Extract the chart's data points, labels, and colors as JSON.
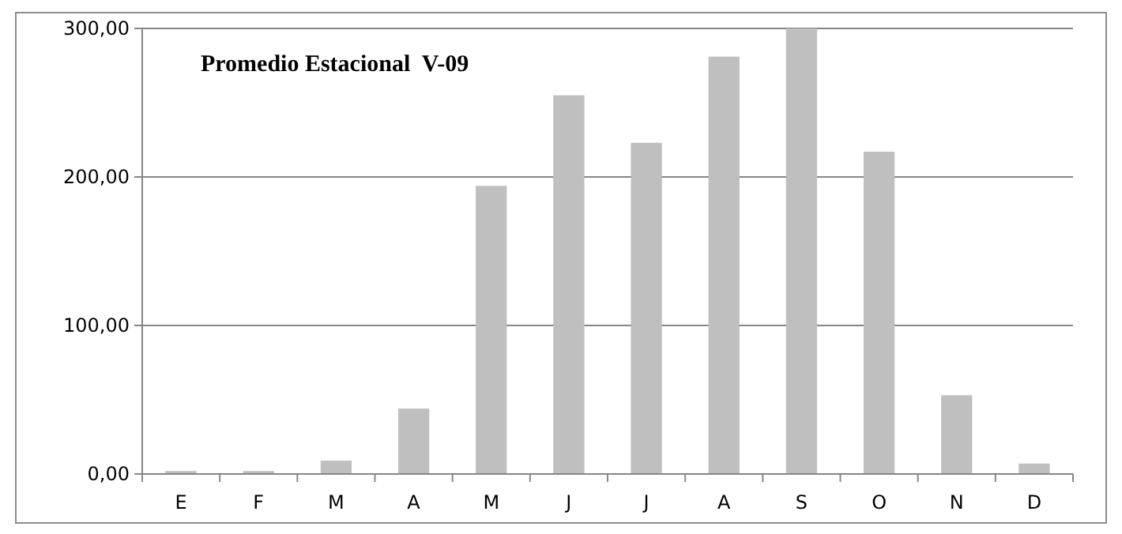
{
  "chart_data": {
    "type": "bar",
    "title": "Promedio Estacional  V-09",
    "categories": [
      "E",
      "F",
      "M",
      "A",
      "M",
      "J",
      "J",
      "A",
      "S",
      "O",
      "N",
      "D"
    ],
    "values": [
      2,
      2,
      9,
      44,
      194,
      255,
      223,
      281,
      300,
      217,
      53,
      7
    ],
    "color": "#bfbfbf",
    "ylim": [
      0,
      300
    ],
    "yticks": [
      {
        "value": 0,
        "label": "0,00"
      },
      {
        "value": 100,
        "label": "100,00"
      },
      {
        "value": 200,
        "label": "200,00"
      },
      {
        "value": 300,
        "label": "300,00"
      }
    ],
    "grid": "y"
  }
}
